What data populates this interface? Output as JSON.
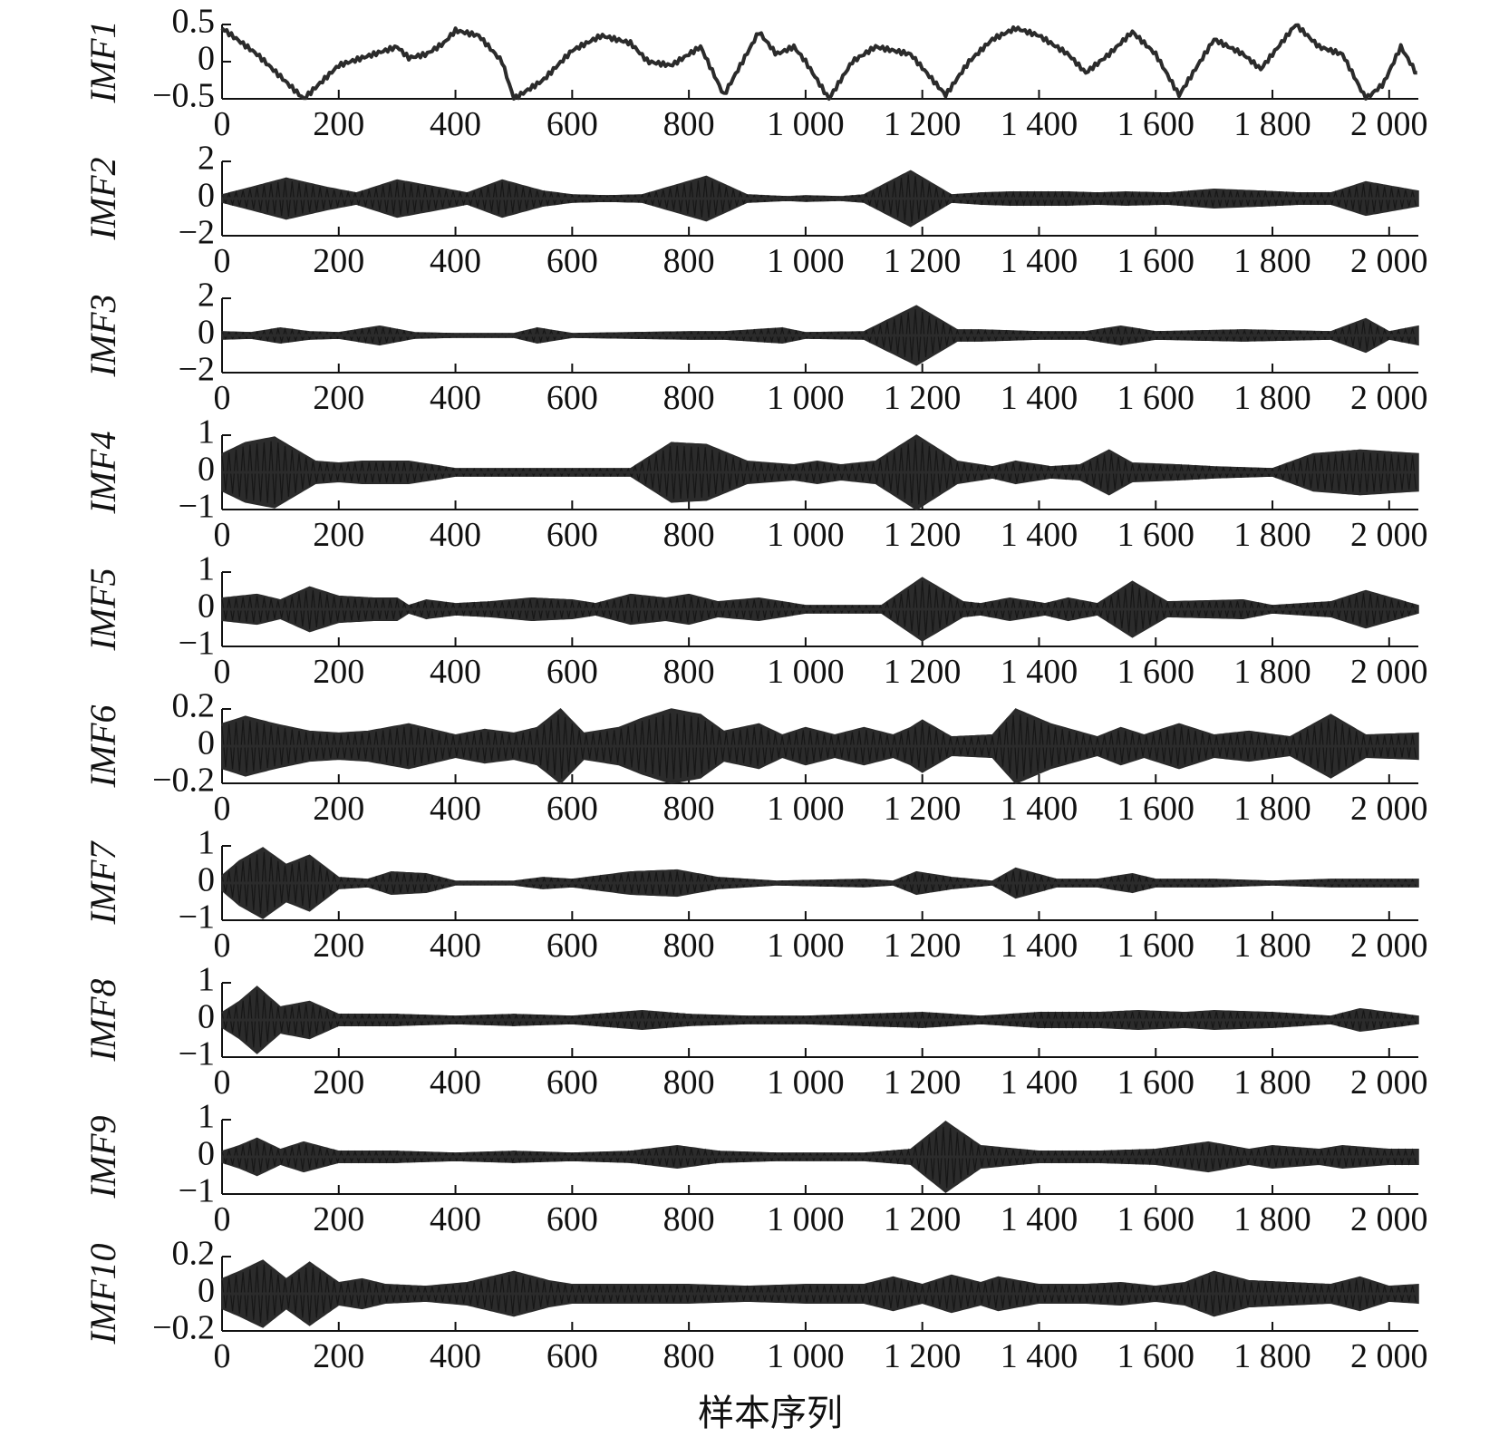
{
  "chart_data": {
    "type": "line",
    "xlabel": "样本序列",
    "x_ticks": [
      0,
      200,
      400,
      600,
      800,
      1000,
      1200,
      1400,
      1600,
      1800,
      2000
    ],
    "x_tick_labels": [
      "0",
      "200",
      "400",
      "600",
      "800",
      "1 000",
      "1 200",
      "1 400",
      "1 600",
      "1 800",
      "2 000"
    ],
    "xlim": [
      0,
      2050
    ],
    "line_color": "#2b2b2b",
    "series": [
      {
        "name": "IMF1",
        "ylim": [
          -0.5,
          0.5
        ],
        "y_ticks": [
          0.5,
          0,
          -0.5
        ],
        "y_tick_labels": [
          "0.5",
          "0",
          "−0.5"
        ],
        "kind": "wave",
        "x": [
          0,
          60,
          140,
          200,
          260,
          300,
          320,
          350,
          380,
          400,
          440,
          480,
          500,
          550,
          600,
          650,
          700,
          730,
          770,
          820,
          860,
          920,
          950,
          980,
          1000,
          1040,
          1080,
          1120,
          1180,
          1240,
          1280,
          1320,
          1360,
          1400,
          1450,
          1480,
          1520,
          1560,
          1600,
          1640,
          1700,
          1750,
          1780,
          1840,
          1880,
          1920,
          1960,
          1990,
          2020,
          2050
        ],
        "y": [
          0.45,
          0.1,
          -0.5,
          -0.05,
          0.1,
          0.2,
          0.05,
          0.1,
          0.25,
          0.42,
          0.35,
          0.0,
          -0.5,
          -0.25,
          0.15,
          0.35,
          0.25,
          0.0,
          -0.05,
          0.2,
          -0.45,
          0.4,
          0.1,
          0.2,
          0.0,
          -0.5,
          0.0,
          0.2,
          0.1,
          -0.45,
          0.0,
          0.3,
          0.45,
          0.35,
          0.1,
          -0.15,
          0.1,
          0.4,
          0.1,
          -0.45,
          0.3,
          0.1,
          -0.1,
          0.5,
          0.2,
          0.1,
          -0.5,
          -0.3,
          0.2,
          -0.2
        ]
      },
      {
        "name": "IMF2",
        "ylim": [
          -2,
          2
        ],
        "y_ticks": [
          2,
          0,
          -2
        ],
        "y_tick_labels": [
          "2",
          "0",
          "−2"
        ],
        "kind": "envelope",
        "x": [
          0,
          50,
          110,
          180,
          230,
          300,
          370,
          420,
          480,
          550,
          600,
          660,
          720,
          830,
          900,
          970,
          1000,
          1060,
          1100,
          1180,
          1250,
          1300,
          1350,
          1450,
          1500,
          1550,
          1620,
          1700,
          1780,
          1850,
          1900,
          1960,
          2050
        ],
        "y": [
          0.2,
          0.6,
          1.1,
          0.6,
          0.3,
          1.0,
          0.6,
          0.3,
          1.0,
          0.4,
          0.2,
          0.15,
          0.2,
          1.2,
          0.2,
          0.1,
          0.15,
          0.1,
          0.2,
          1.5,
          0.2,
          0.3,
          0.35,
          0.35,
          0.3,
          0.35,
          0.3,
          0.5,
          0.4,
          0.3,
          0.3,
          0.9,
          0.4
        ]
      },
      {
        "name": "IMF3",
        "ylim": [
          -2,
          2
        ],
        "y_ticks": [
          2,
          0,
          -2
        ],
        "y_tick_labels": [
          "2",
          "0",
          "−2"
        ],
        "kind": "envelope",
        "x": [
          0,
          50,
          100,
          150,
          200,
          270,
          330,
          400,
          500,
          540,
          600,
          700,
          800,
          860,
          960,
          1000,
          1100,
          1190,
          1260,
          1300,
          1400,
          1480,
          1540,
          1600,
          1750,
          1900,
          1960,
          2000,
          2050
        ],
        "y": [
          0.2,
          0.15,
          0.4,
          0.2,
          0.15,
          0.5,
          0.15,
          0.1,
          0.1,
          0.4,
          0.1,
          0.15,
          0.2,
          0.2,
          0.4,
          0.15,
          0.2,
          1.6,
          0.3,
          0.3,
          0.2,
          0.2,
          0.5,
          0.2,
          0.3,
          0.2,
          0.9,
          0.2,
          0.5
        ]
      },
      {
        "name": "IMF4",
        "ylim": [
          -1,
          1
        ],
        "y_ticks": [
          1,
          0,
          -1
        ],
        "y_tick_labels": [
          "1",
          "0",
          "−1"
        ],
        "kind": "envelope",
        "x": [
          0,
          40,
          90,
          160,
          200,
          240,
          280,
          320,
          400,
          500,
          600,
          700,
          770,
          830,
          900,
          980,
          1020,
          1060,
          1120,
          1190,
          1260,
          1320,
          1360,
          1420,
          1470,
          1520,
          1560,
          1640,
          1700,
          1800,
          1870,
          1950,
          2050
        ],
        "y": [
          0.5,
          0.8,
          0.95,
          0.3,
          0.25,
          0.3,
          0.3,
          0.3,
          0.1,
          0.1,
          0.1,
          0.1,
          0.8,
          0.75,
          0.3,
          0.2,
          0.3,
          0.2,
          0.3,
          1.0,
          0.3,
          0.15,
          0.3,
          0.15,
          0.2,
          0.6,
          0.25,
          0.2,
          0.15,
          0.1,
          0.5,
          0.6,
          0.5
        ]
      },
      {
        "name": "IMF5",
        "ylim": [
          -1,
          1
        ],
        "y_ticks": [
          1,
          0,
          -1
        ],
        "y_tick_labels": [
          "1",
          "0",
          "−1"
        ],
        "kind": "envelope",
        "x": [
          0,
          60,
          100,
          150,
          200,
          260,
          300,
          320,
          350,
          400,
          460,
          530,
          600,
          640,
          700,
          760,
          800,
          850,
          920,
          1000,
          1060,
          1130,
          1200,
          1270,
          1300,
          1350,
          1410,
          1450,
          1500,
          1560,
          1620,
          1750,
          1800,
          1900,
          1960,
          2050
        ],
        "y": [
          0.3,
          0.4,
          0.25,
          0.6,
          0.35,
          0.3,
          0.3,
          0.1,
          0.25,
          0.15,
          0.2,
          0.3,
          0.25,
          0.15,
          0.4,
          0.3,
          0.4,
          0.2,
          0.3,
          0.1,
          0.1,
          0.1,
          0.85,
          0.2,
          0.15,
          0.3,
          0.15,
          0.3,
          0.15,
          0.75,
          0.2,
          0.25,
          0.1,
          0.2,
          0.5,
          0.1
        ]
      },
      {
        "name": "IMF6",
        "ylim": [
          -0.2,
          0.2
        ],
        "y_ticks": [
          0.2,
          0,
          -0.2
        ],
        "y_tick_labels": [
          "0.2",
          "0",
          "−0.2"
        ],
        "kind": "envelope",
        "x": [
          0,
          40,
          90,
          150,
          200,
          250,
          320,
          400,
          450,
          500,
          540,
          580,
          620,
          680,
          720,
          770,
          820,
          860,
          920,
          960,
          1000,
          1050,
          1100,
          1150,
          1180,
          1200,
          1250,
          1320,
          1360,
          1420,
          1500,
          1540,
          1580,
          1640,
          1700,
          1760,
          1830,
          1900,
          1960,
          2050
        ],
        "y": [
          0.12,
          0.16,
          0.12,
          0.08,
          0.07,
          0.08,
          0.12,
          0.06,
          0.09,
          0.07,
          0.1,
          0.2,
          0.07,
          0.1,
          0.15,
          0.2,
          0.17,
          0.08,
          0.12,
          0.06,
          0.1,
          0.06,
          0.1,
          0.06,
          0.1,
          0.14,
          0.05,
          0.06,
          0.2,
          0.12,
          0.05,
          0.1,
          0.06,
          0.12,
          0.06,
          0.08,
          0.05,
          0.17,
          0.06,
          0.07
        ]
      },
      {
        "name": "IMF7",
        "ylim": [
          -1,
          1
        ],
        "y_ticks": [
          1,
          0,
          -1
        ],
        "y_tick_labels": [
          "1",
          "0",
          "−1"
        ],
        "kind": "envelope",
        "x": [
          0,
          30,
          70,
          110,
          150,
          200,
          250,
          290,
          350,
          400,
          450,
          500,
          550,
          600,
          650,
          700,
          780,
          850,
          950,
          1100,
          1150,
          1190,
          1250,
          1320,
          1360,
          1430,
          1500,
          1560,
          1600,
          1700,
          1800,
          1900,
          2050
        ],
        "y": [
          0.2,
          0.6,
          0.95,
          0.5,
          0.75,
          0.15,
          0.1,
          0.3,
          0.25,
          0.05,
          0.05,
          0.05,
          0.15,
          0.1,
          0.2,
          0.3,
          0.35,
          0.15,
          0.05,
          0.1,
          0.05,
          0.3,
          0.15,
          0.05,
          0.4,
          0.1,
          0.1,
          0.25,
          0.1,
          0.1,
          0.05,
          0.1,
          0.1
        ]
      },
      {
        "name": "IMF8",
        "ylim": [
          -1,
          1
        ],
        "y_ticks": [
          1,
          0,
          -1
        ],
        "y_tick_labels": [
          "1",
          "0",
          "−1"
        ],
        "kind": "envelope",
        "x": [
          0,
          30,
          60,
          100,
          150,
          200,
          300,
          400,
          500,
          600,
          720,
          800,
          900,
          1000,
          1100,
          1200,
          1300,
          1400,
          1500,
          1570,
          1650,
          1700,
          1800,
          1900,
          1950,
          2050
        ],
        "y": [
          0.2,
          0.5,
          0.9,
          0.35,
          0.5,
          0.15,
          0.15,
          0.1,
          0.15,
          0.1,
          0.25,
          0.15,
          0.1,
          0.1,
          0.15,
          0.2,
          0.1,
          0.2,
          0.2,
          0.25,
          0.2,
          0.25,
          0.2,
          0.1,
          0.3,
          0.1
        ]
      },
      {
        "name": "IMF9",
        "ylim": [
          -1,
          1
        ],
        "y_ticks": [
          1,
          0,
          -1
        ],
        "y_tick_labels": [
          "1",
          "0",
          "−1"
        ],
        "kind": "envelope",
        "x": [
          0,
          30,
          60,
          100,
          140,
          200,
          300,
          400,
          500,
          600,
          700,
          780,
          850,
          950,
          1100,
          1180,
          1240,
          1300,
          1400,
          1500,
          1600,
          1690,
          1760,
          1800,
          1880,
          1920,
          2000,
          2050
        ],
        "y": [
          0.15,
          0.3,
          0.5,
          0.2,
          0.4,
          0.15,
          0.15,
          0.1,
          0.15,
          0.1,
          0.15,
          0.3,
          0.15,
          0.1,
          0.1,
          0.2,
          0.95,
          0.3,
          0.15,
          0.15,
          0.2,
          0.4,
          0.2,
          0.3,
          0.2,
          0.3,
          0.2,
          0.2
        ]
      },
      {
        "name": "IMF10",
        "ylim": [
          -0.2,
          0.2
        ],
        "y_ticks": [
          0.2,
          0,
          -0.2
        ],
        "y_tick_labels": [
          "0.2",
          "0",
          "−0.2"
        ],
        "kind": "envelope",
        "x": [
          0,
          30,
          70,
          110,
          150,
          200,
          240,
          280,
          350,
          420,
          500,
          560,
          600,
          700,
          800,
          900,
          1000,
          1100,
          1150,
          1200,
          1250,
          1300,
          1330,
          1400,
          1480,
          1540,
          1600,
          1650,
          1700,
          1760,
          1830,
          1900,
          1950,
          2000,
          2050
        ],
        "y": [
          0.08,
          0.12,
          0.18,
          0.08,
          0.17,
          0.06,
          0.08,
          0.05,
          0.04,
          0.06,
          0.12,
          0.07,
          0.05,
          0.05,
          0.05,
          0.04,
          0.05,
          0.05,
          0.09,
          0.05,
          0.1,
          0.06,
          0.09,
          0.05,
          0.05,
          0.06,
          0.04,
          0.06,
          0.12,
          0.07,
          0.06,
          0.05,
          0.09,
          0.04,
          0.05
        ]
      }
    ]
  }
}
